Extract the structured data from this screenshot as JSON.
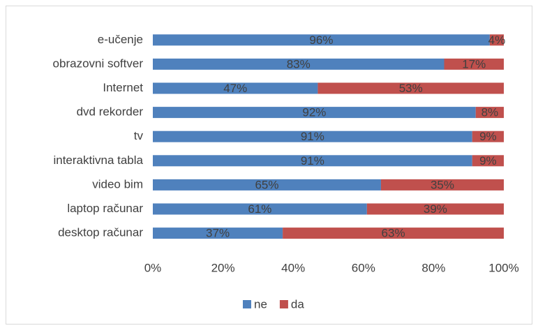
{
  "chart_data": {
    "type": "stacked-bar-horizontal",
    "categories": [
      "e-učenje",
      "obrazovni softver",
      "Internet",
      "dvd rekorder",
      "tv",
      "interaktivna tabla",
      "video bim",
      "laptop računar",
      "desktop računar"
    ],
    "series": [
      {
        "name": "ne",
        "color": "#4f81bd",
        "values": [
          96,
          83,
          47,
          92,
          91,
          91,
          65,
          61,
          37
        ],
        "value_labels": [
          "96%",
          "83%",
          "47%",
          "92%",
          "91%",
          "91%",
          "65%",
          "61%",
          "37%"
        ]
      },
      {
        "name": "da",
        "color": "#c0504d",
        "values": [
          4,
          17,
          53,
          8,
          9,
          9,
          35,
          39,
          63
        ],
        "value_labels": [
          "4%",
          "17%",
          "53%",
          "8%",
          "9%",
          "9%",
          "35%",
          "39%",
          "63%"
        ]
      }
    ],
    "xlim": [
      0,
      100
    ],
    "xticks": [
      {
        "value": 0,
        "label": "0%"
      },
      {
        "value": 20,
        "label": "20%"
      },
      {
        "value": 40,
        "label": "40%"
      },
      {
        "value": 60,
        "label": "60%"
      },
      {
        "value": 80,
        "label": "80%"
      },
      {
        "value": 100,
        "label": "100%"
      }
    ],
    "legend": "bottom"
  }
}
